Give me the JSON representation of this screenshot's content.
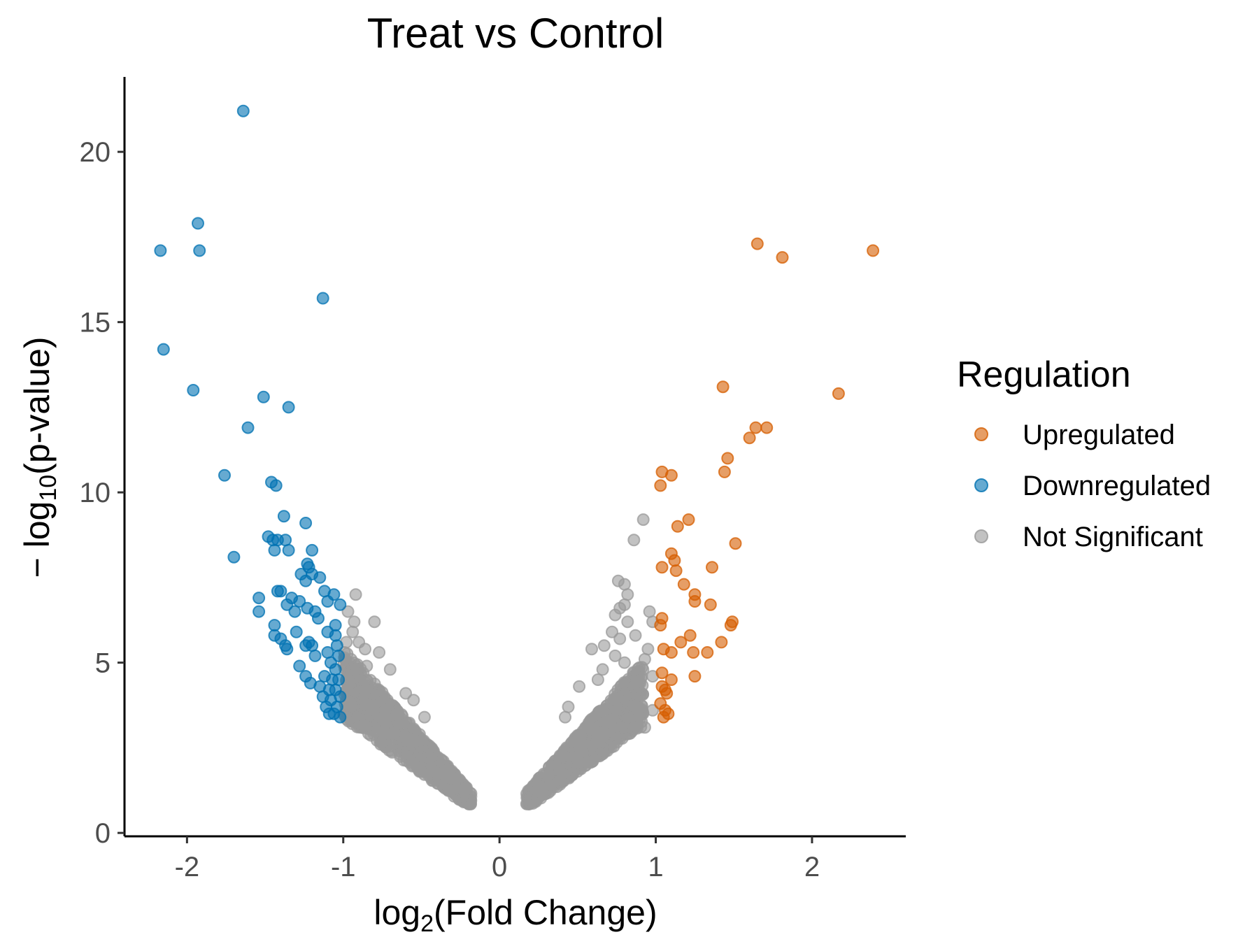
{
  "chart_data": {
    "type": "scatter",
    "title": "Treat vs Control",
    "xlabel": {
      "prefix": "log",
      "sub": "2",
      "suffix": "(Fold Change)"
    },
    "ylabel": {
      "prefix": "− log",
      "sub": "10",
      "suffix": "(p-value)"
    },
    "xlim": [
      -2.4,
      2.6
    ],
    "ylim": [
      -0.1,
      22.2
    ],
    "x_ticks": [
      -2,
      -1,
      0,
      1,
      2
    ],
    "y_ticks": [
      0,
      5,
      10,
      15,
      20
    ],
    "grid": false,
    "legend": {
      "title": "Regulation",
      "position": "right",
      "entries": [
        {
          "label": "Upregulated",
          "color": "#d55e00"
        },
        {
          "label": "Downregulated",
          "color": "#0072b2"
        },
        {
          "label": "Not Significant",
          "color": "#999999"
        }
      ]
    },
    "series": [
      {
        "name": "Upregulated",
        "color": "#d55e00",
        "points": [
          [
            1.65,
            17.3
          ],
          [
            1.81,
            16.9
          ],
          [
            2.39,
            17.1
          ],
          [
            2.17,
            12.9
          ],
          [
            1.43,
            13.1
          ],
          [
            1.6,
            11.6
          ],
          [
            1.64,
            11.9
          ],
          [
            1.71,
            11.9
          ],
          [
            1.46,
            11.0
          ],
          [
            1.44,
            10.6
          ],
          [
            1.04,
            10.6
          ],
          [
            1.03,
            10.2
          ],
          [
            1.1,
            10.5
          ],
          [
            1.21,
            9.2
          ],
          [
            1.14,
            9.0
          ],
          [
            1.51,
            8.5
          ],
          [
            1.1,
            8.2
          ],
          [
            1.12,
            8.0
          ],
          [
            1.04,
            7.8
          ],
          [
            1.13,
            7.7
          ],
          [
            1.36,
            7.8
          ],
          [
            1.18,
            7.3
          ],
          [
            1.25,
            7.0
          ],
          [
            1.25,
            6.8
          ],
          [
            1.35,
            6.7
          ],
          [
            1.49,
            6.2
          ],
          [
            1.48,
            6.1
          ],
          [
            1.04,
            6.3
          ],
          [
            1.03,
            6.1
          ],
          [
            1.22,
            5.8
          ],
          [
            1.16,
            5.6
          ],
          [
            1.42,
            5.6
          ],
          [
            1.05,
            5.4
          ],
          [
            1.1,
            5.3
          ],
          [
            1.24,
            5.3
          ],
          [
            1.33,
            5.3
          ],
          [
            1.04,
            4.7
          ],
          [
            1.1,
            4.5
          ],
          [
            1.25,
            4.6
          ],
          [
            1.04,
            4.3
          ],
          [
            1.06,
            4.2
          ],
          [
            1.07,
            4.1
          ],
          [
            1.03,
            3.8
          ],
          [
            1.06,
            3.6
          ],
          [
            1.05,
            3.4
          ],
          [
            1.08,
            3.5
          ]
        ]
      },
      {
        "name": "Downregulated",
        "color": "#0072b2",
        "points": [
          [
            -1.64,
            21.2
          ],
          [
            -1.93,
            17.9
          ],
          [
            -2.17,
            17.1
          ],
          [
            -1.92,
            17.1
          ],
          [
            -1.13,
            15.7
          ],
          [
            -2.15,
            14.2
          ],
          [
            -1.96,
            13.0
          ],
          [
            -1.51,
            12.8
          ],
          [
            -1.35,
            12.5
          ],
          [
            -1.61,
            11.9
          ],
          [
            -1.76,
            10.5
          ],
          [
            -1.46,
            10.3
          ],
          [
            -1.43,
            10.2
          ],
          [
            -1.38,
            9.3
          ],
          [
            -1.24,
            9.1
          ],
          [
            -1.48,
            8.7
          ],
          [
            -1.45,
            8.6
          ],
          [
            -1.42,
            8.6
          ],
          [
            -1.37,
            8.6
          ],
          [
            -1.44,
            8.3
          ],
          [
            -1.35,
            8.3
          ],
          [
            -1.2,
            8.3
          ],
          [
            -1.7,
            8.1
          ],
          [
            -1.23,
            7.9
          ],
          [
            -1.22,
            7.8
          ],
          [
            -1.27,
            7.6
          ],
          [
            -1.2,
            7.6
          ],
          [
            -1.15,
            7.5
          ],
          [
            -1.24,
            7.4
          ],
          [
            -1.4,
            7.1
          ],
          [
            -1.42,
            7.1
          ],
          [
            -1.12,
            7.1
          ],
          [
            -1.06,
            7.0
          ],
          [
            -1.54,
            6.9
          ],
          [
            -1.33,
            6.9
          ],
          [
            -1.28,
            6.8
          ],
          [
            -1.1,
            6.8
          ],
          [
            -1.02,
            6.7
          ],
          [
            -1.36,
            6.7
          ],
          [
            -1.23,
            6.6
          ],
          [
            -1.31,
            6.5
          ],
          [
            -1.18,
            6.5
          ],
          [
            -1.54,
            6.5
          ],
          [
            -1.16,
            6.3
          ],
          [
            -1.05,
            6.1
          ],
          [
            -1.44,
            6.1
          ],
          [
            -1.3,
            5.9
          ],
          [
            -1.1,
            5.9
          ],
          [
            -1.44,
            5.8
          ],
          [
            -1.05,
            5.8
          ],
          [
            -1.4,
            5.7
          ],
          [
            -1.22,
            5.6
          ],
          [
            -1.24,
            5.5
          ],
          [
            -1.2,
            5.5
          ],
          [
            -1.37,
            5.5
          ],
          [
            -1.36,
            5.4
          ],
          [
            -1.1,
            5.3
          ],
          [
            -1.03,
            5.2
          ],
          [
            -1.04,
            5.5
          ],
          [
            -1.18,
            5.2
          ],
          [
            -1.08,
            5.0
          ],
          [
            -1.28,
            4.9
          ],
          [
            -1.05,
            4.8
          ],
          [
            -1.24,
            4.6
          ],
          [
            -1.12,
            4.6
          ],
          [
            -1.07,
            4.5
          ],
          [
            -1.03,
            4.5
          ],
          [
            -1.21,
            4.4
          ],
          [
            -1.15,
            4.3
          ],
          [
            -1.09,
            4.2
          ],
          [
            -1.05,
            4.2
          ],
          [
            -1.13,
            4.0
          ],
          [
            -1.02,
            4.0
          ],
          [
            -1.08,
            3.9
          ],
          [
            -1.11,
            3.7
          ],
          [
            -1.04,
            3.7
          ],
          [
            -1.06,
            3.5
          ],
          [
            -1.02,
            3.4
          ],
          [
            -1.09,
            3.5
          ]
        ]
      },
      {
        "name": "Not Significant",
        "color": "#999999",
        "points": [
          [
            -0.92,
            7.0
          ],
          [
            -0.97,
            6.5
          ],
          [
            -0.93,
            6.2
          ],
          [
            -0.8,
            6.2
          ],
          [
            -0.94,
            5.9
          ],
          [
            -0.98,
            5.6
          ],
          [
            -0.9,
            5.6
          ],
          [
            -0.86,
            5.4
          ],
          [
            -0.77,
            5.3
          ],
          [
            -0.95,
            5.1
          ],
          [
            -0.85,
            4.9
          ],
          [
            -0.7,
            4.8
          ],
          [
            -0.92,
            4.8
          ],
          [
            -0.6,
            4.1
          ],
          [
            -0.55,
            3.9
          ],
          [
            -0.48,
            3.4
          ],
          [
            0.76,
            7.4
          ],
          [
            0.8,
            7.3
          ],
          [
            0.82,
            7.0
          ],
          [
            0.8,
            6.7
          ],
          [
            0.77,
            6.6
          ],
          [
            0.74,
            6.4
          ],
          [
            0.82,
            6.2
          ],
          [
            0.72,
            5.9
          ],
          [
            0.87,
            5.8
          ],
          [
            0.77,
            5.7
          ],
          [
            0.59,
            5.4
          ],
          [
            0.67,
            5.5
          ],
          [
            0.8,
            5.0
          ],
          [
            0.74,
            5.2
          ],
          [
            0.66,
            4.8
          ],
          [
            0.63,
            4.5
          ],
          [
            0.51,
            4.3
          ],
          [
            0.44,
            3.7
          ],
          [
            0.42,
            3.4
          ],
          [
            0.86,
            8.6
          ],
          [
            0.92,
            9.2
          ],
          [
            0.96,
            6.5
          ],
          [
            0.98,
            6.2
          ],
          [
            0.95,
            5.4
          ],
          [
            0.93,
            5.1
          ],
          [
            0.98,
            4.6
          ],
          [
            0.9,
            4.4
          ],
          [
            0.98,
            3.6
          ],
          [
            0.93,
            3.1
          ],
          [
            0.86,
            3.1
          ],
          [
            0.82,
            3.4
          ]
        ]
      }
    ]
  }
}
